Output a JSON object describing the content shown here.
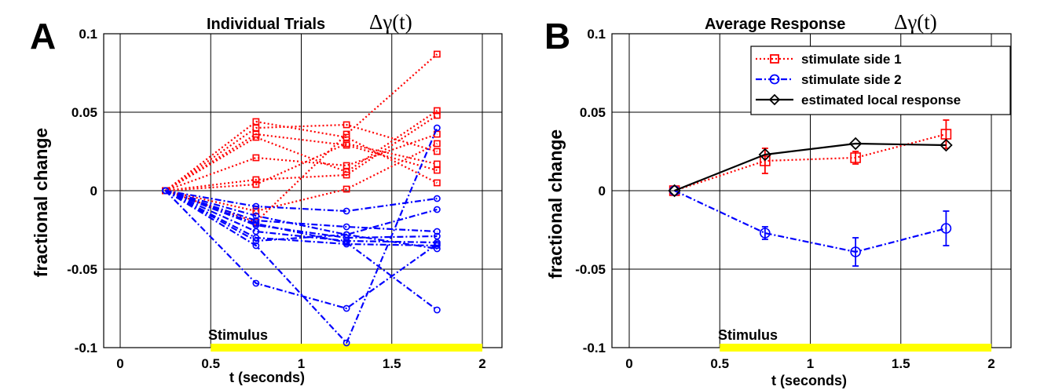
{
  "chart_data": [
    {
      "panel": "A",
      "type": "line",
      "title": "Individual Trials",
      "title_math": "Δγ(t)",
      "xlabel": "t (seconds)",
      "ylabel": "fractional change",
      "xlim": [
        -0.1,
        2.05
      ],
      "ylim": [
        -0.1,
        0.1
      ],
      "xticks": [
        0,
        0.5,
        1,
        1.5,
        2
      ],
      "xtick_labels": [
        "0",
        "0.5",
        "1",
        "1.5",
        "2"
      ],
      "yticks": [
        -0.1,
        -0.05,
        0,
        0.05,
        0.1
      ],
      "ytick_labels": [
        "-0.1",
        "-0.05",
        "0",
        "0.05",
        "0.1"
      ],
      "grid": true,
      "stimulus": {
        "label": "Stimulus",
        "start": 0.5,
        "end": 2.0,
        "color": "#ffff00"
      },
      "x": [
        0.25,
        0.75,
        1.25,
        1.75
      ],
      "series": [
        {
          "group": "side1",
          "color": "#ff0000",
          "marker": "square",
          "values": [
            0,
            0.044,
            0.034,
            0.005
          ]
        },
        {
          "group": "side1",
          "color": "#ff0000",
          "marker": "square",
          "values": [
            0,
            0.04,
            0.042,
            0.025
          ]
        },
        {
          "group": "side1",
          "color": "#ff0000",
          "marker": "square",
          "values": [
            0,
            0.036,
            0.029,
            0.013
          ]
        },
        {
          "group": "side1",
          "color": "#ff0000",
          "marker": "square",
          "values": [
            0,
            0.034,
            0.012,
            0.051
          ]
        },
        {
          "group": "side1",
          "color": "#ff0000",
          "marker": "square",
          "values": [
            0,
            0.021,
            0.016,
            0.036
          ]
        },
        {
          "group": "side1",
          "color": "#ff0000",
          "marker": "square",
          "values": [
            0,
            0.007,
            0.01,
            0.048
          ]
        },
        {
          "group": "side1",
          "color": "#ff0000",
          "marker": "square",
          "values": [
            0,
            0.004,
            0.03,
            0.017
          ]
        },
        {
          "group": "side1",
          "color": "#ff0000",
          "marker": "square",
          "values": [
            0,
            -0.013,
            0.001,
            0.03
          ]
        },
        {
          "group": "side1",
          "color": "#ff0000",
          "marker": "square",
          "values": [
            0,
            -0.02,
            0.036,
            0.087
          ]
        },
        {
          "group": "side2",
          "color": "#0000ff",
          "marker": "circle",
          "values": [
            0,
            -0.01,
            -0.013,
            -0.005
          ]
        },
        {
          "group": "side2",
          "color": "#0000ff",
          "marker": "circle",
          "values": [
            0,
            -0.016,
            -0.028,
            -0.012
          ]
        },
        {
          "group": "side2",
          "color": "#0000ff",
          "marker": "circle",
          "values": [
            0,
            -0.019,
            -0.023,
            -0.026
          ]
        },
        {
          "group": "side2",
          "color": "#0000ff",
          "marker": "circle",
          "values": [
            0,
            -0.022,
            -0.03,
            -0.029
          ]
        },
        {
          "group": "side2",
          "color": "#0000ff",
          "marker": "circle",
          "values": [
            0,
            -0.026,
            -0.032,
            -0.033
          ]
        },
        {
          "group": "side2",
          "color": "#0000ff",
          "marker": "circle",
          "values": [
            0,
            -0.03,
            -0.034,
            -0.035
          ]
        },
        {
          "group": "side2",
          "color": "#0000ff",
          "marker": "circle",
          "values": [
            0,
            -0.032,
            -0.028,
            -0.037
          ]
        },
        {
          "group": "side2",
          "color": "#0000ff",
          "marker": "circle",
          "values": [
            0,
            -0.035,
            -0.097,
            0.04
          ]
        },
        {
          "group": "side2",
          "color": "#0000ff",
          "marker": "circle",
          "values": [
            0,
            -0.059,
            -0.075,
            -0.034
          ]
        },
        {
          "group": "side2",
          "color": "#0000ff",
          "marker": "circle",
          "values": [
            0,
            -0.021,
            -0.033,
            -0.076
          ]
        }
      ]
    },
    {
      "panel": "B",
      "type": "line",
      "title": "Average Response",
      "title_math": "Δγ(t)",
      "xlabel": "t (seconds)",
      "ylabel": "fractional change",
      "xlim": [
        -0.1,
        2.05
      ],
      "ylim": [
        -0.1,
        0.1
      ],
      "xticks": [
        0,
        0.5,
        1,
        1.5,
        2
      ],
      "xtick_labels": [
        "0",
        "0.5",
        "1",
        "1.5",
        "2"
      ],
      "yticks": [
        -0.1,
        -0.05,
        0,
        0.05,
        0.1
      ],
      "ytick_labels": [
        "-0.1",
        "-0.05",
        "0",
        "0.05",
        "0.1"
      ],
      "grid": true,
      "legend_position": "top-right",
      "stimulus": {
        "label": "Stimulus",
        "start": 0.5,
        "end": 2.0,
        "color": "#ffff00"
      },
      "x": [
        0.25,
        0.75,
        1.25,
        1.75
      ],
      "series": [
        {
          "name": "stimulate side 1",
          "color": "#ff0000",
          "marker": "square",
          "values": [
            0,
            0.019,
            0.021,
            0.036
          ],
          "errors": [
            0,
            0.008,
            0.004,
            0.009
          ]
        },
        {
          "name": "stimulate side 2",
          "color": "#0000ff",
          "marker": "circle",
          "values": [
            0,
            -0.027,
            -0.039,
            -0.024
          ],
          "errors": [
            0,
            0.004,
            0.009,
            0.011
          ]
        },
        {
          "name": "estimated local response",
          "color": "#000000",
          "marker": "diamond",
          "values": [
            0,
            0.023,
            0.03,
            0.029
          ],
          "errors": [
            0,
            0,
            0,
            0
          ]
        }
      ]
    }
  ]
}
